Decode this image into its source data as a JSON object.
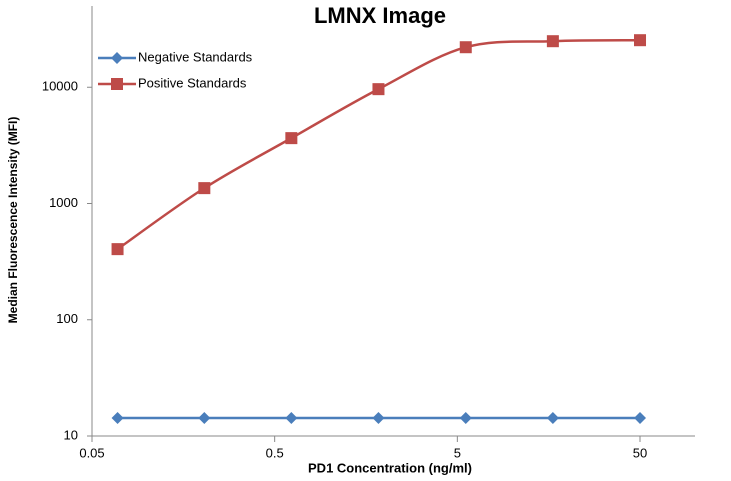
{
  "chart_data": {
    "type": "line",
    "title": "LMNX Image",
    "x_label": "PD1 Concentration  (ng/ml)",
    "y_label": "Median Fluorescence Intensity (MFI)",
    "x": [
      0.069,
      0.206,
      0.617,
      1.85,
      5.56,
      16.67,
      50
    ],
    "series": [
      {
        "name": "Negative Standards",
        "color": "#4a7ebb",
        "marker": "diamond",
        "values": [
          14.3,
          14.3,
          14.3,
          14.3,
          14.3,
          14.3,
          14.3
        ]
      },
      {
        "name": "Positive Standards",
        "color": "#be4b48",
        "marker": "square",
        "values": [
          405,
          1356,
          3650,
          9630,
          22100,
          24900,
          25400
        ]
      }
    ],
    "x_log": true,
    "y_log": true,
    "xlim": [
      0.05,
      100
    ],
    "xticks": [
      0.05,
      0.5,
      5,
      50
    ],
    "ylim": [
      10,
      50000
    ],
    "yticks": [
      10,
      100,
      1000,
      10000
    ],
    "grid": false,
    "legend": "upper left"
  }
}
